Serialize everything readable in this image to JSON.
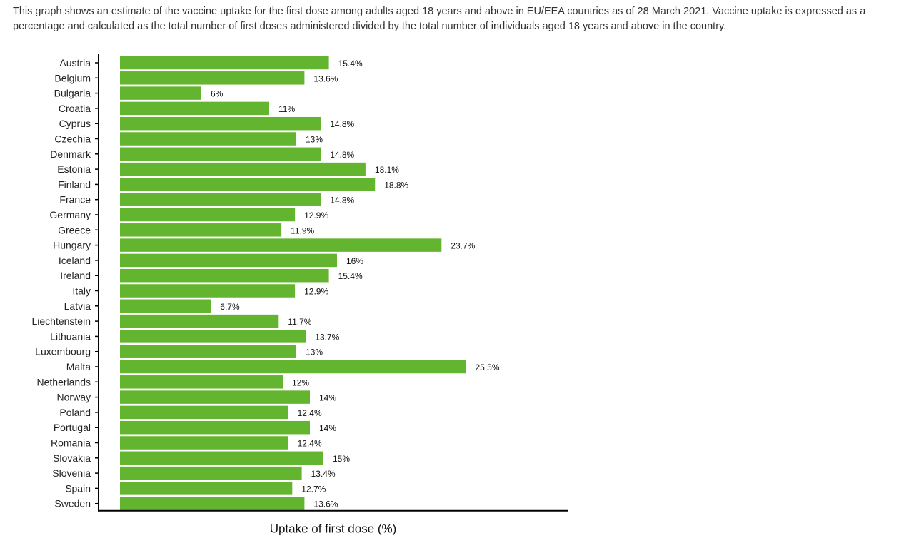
{
  "description": "This graph shows an estimate of the vaccine uptake for the first dose among adults aged 18 years and above in EU/EEA countries as of 28 March 2021. Vaccine uptake is expressed as a percentage and calculated as the total number of first doses administered divided by the total number of individuals aged 18 years and above in the country.",
  "chart_data": {
    "type": "bar",
    "orientation": "horizontal",
    "xlabel": "Uptake of first dose (%)",
    "ylabel": "",
    "xlim": [
      0,
      33
    ],
    "grid": false,
    "bar_color": "#63b52f",
    "categories": [
      "Austria",
      "Belgium",
      "Bulgaria",
      "Croatia",
      "Cyprus",
      "Czechia",
      "Denmark",
      "Estonia",
      "Finland",
      "France",
      "Germany",
      "Greece",
      "Hungary",
      "Iceland",
      "Ireland",
      "Italy",
      "Latvia",
      "Liechtenstein",
      "Lithuania",
      "Luxembourg",
      "Malta",
      "Netherlands",
      "Norway",
      "Poland",
      "Portugal",
      "Romania",
      "Slovakia",
      "Slovenia",
      "Spain",
      "Sweden"
    ],
    "values": [
      15.4,
      13.6,
      6,
      11,
      14.8,
      13,
      14.8,
      18.1,
      18.8,
      14.8,
      12.9,
      11.9,
      23.7,
      16,
      15.4,
      12.9,
      6.7,
      11.7,
      13.7,
      13,
      25.5,
      12,
      14,
      12.4,
      14,
      12.4,
      15,
      13.4,
      12.7,
      13.6
    ],
    "value_labels": [
      "15.4%",
      "13.6%",
      "6%",
      "11%",
      "14.8%",
      "13%",
      "14.8%",
      "18.1%",
      "18.8%",
      "14.8%",
      "12.9%",
      "11.9%",
      "23.7%",
      "16%",
      "15.4%",
      "12.9%",
      "6.7%",
      "11.7%",
      "13.7%",
      "13%",
      "25.5%",
      "12%",
      "14%",
      "12.4%",
      "14%",
      "12.4%",
      "15%",
      "13.4%",
      "12.7%",
      "13.6%"
    ]
  }
}
